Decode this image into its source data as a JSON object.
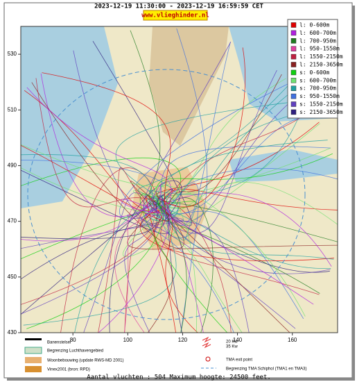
{
  "header": {
    "period": "2023-12-19 11:30:00 - 2023-12-19 16:59:59 CET",
    "site": "www.vlieghinder.nl"
  },
  "map": {
    "xlim": [
      61,
      176.5
    ],
    "ylim": [
      430,
      540
    ],
    "xticks": [
      80,
      100,
      120,
      140,
      160
    ],
    "yticks": [
      530,
      510,
      490,
      470,
      450,
      430
    ]
  },
  "legend": [
    {
      "label": "l: 0-600m",
      "color": "#e00000"
    },
    {
      "label": "l: 600-700m",
      "color": "#b020e0"
    },
    {
      "label": "l: 700-950m",
      "color": "#207a20"
    },
    {
      "label": "l: 950-1550m",
      "color": "#e040a0"
    },
    {
      "label": "l: 1550-2150m",
      "color": "#c02040"
    },
    {
      "label": "l: 2150-3650m",
      "color": "#8a2020"
    },
    {
      "label": "s: 0-600m",
      "color": "#10d010"
    },
    {
      "label": "s: 600-700m",
      "color": "#70e070"
    },
    {
      "label": "s: 700-950m",
      "color": "#20a0a0"
    },
    {
      "label": "s: 950-1550m",
      "color": "#4070e0"
    },
    {
      "label": "s: 1550-2150m",
      "color": "#6040c0"
    },
    {
      "label": "s: 2150-3650m",
      "color": "#302080"
    }
  ],
  "map_legend": {
    "runways": "Banenstelsel",
    "airport_boundary": "Begrenzing Luchthavengebied",
    "housing": "Woonbebouwing (update RWS-MD 2001)",
    "vinex": "Vinex2001 (bron: RPD)",
    "kw20": "20 Kw",
    "kw35": "35 Kw",
    "tma_exit": "TMA exit point",
    "tma_boundary": "Begrenzing TMA Schiphol  (TMA1 en TMA3)"
  },
  "footer": "Aantal vluchten : 504 Maximum hoogte: 24500 feet."
}
